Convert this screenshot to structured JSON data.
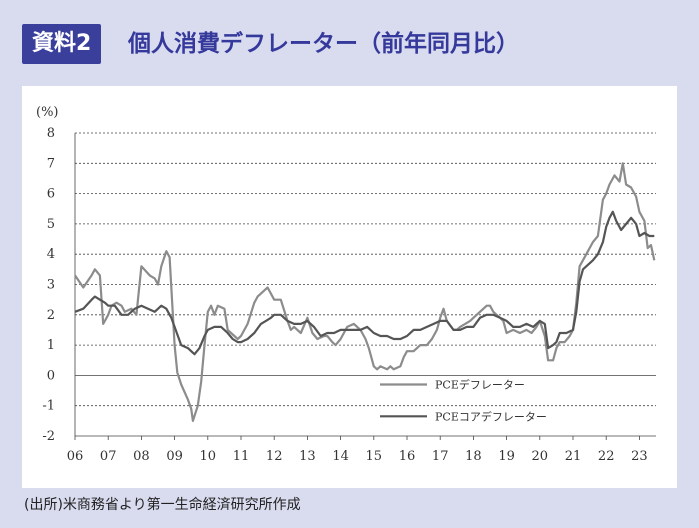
{
  "header": {
    "badge": "資料2",
    "title": "個人消費デフレーター（前年同月比）"
  },
  "footer": {
    "source": "(出所)米商務省より第一生命経済研究所作成"
  },
  "chart_data": {
    "type": "line",
    "ylabel": "(%)",
    "ylim": [
      -2,
      8
    ],
    "yticks": [
      "8",
      "7",
      "6",
      "5",
      "4",
      "3",
      "2",
      "1",
      "0",
      "-1",
      "-2"
    ],
    "xticks": [
      "06",
      "07",
      "08",
      "09",
      "10",
      "11",
      "12",
      "13",
      "14",
      "15",
      "16",
      "17",
      "18",
      "19",
      "20",
      "21",
      "22",
      "23"
    ],
    "xlim": [
      2006.0,
      2023.5
    ],
    "grid": "horizontal dashed",
    "legend_position": "bottom-center",
    "series": [
      {
        "name": "PCEデフレーター",
        "color": "#8c8c8c",
        "points": [
          [
            2006.0,
            3.3
          ],
          [
            2006.25,
            2.9
          ],
          [
            2006.5,
            3.3
          ],
          [
            2006.6,
            3.5
          ],
          [
            2006.75,
            3.3
          ],
          [
            2006.85,
            1.7
          ],
          [
            2007.0,
            2.0
          ],
          [
            2007.1,
            2.3
          ],
          [
            2007.25,
            2.4
          ],
          [
            2007.4,
            2.3
          ],
          [
            2007.5,
            2.1
          ],
          [
            2007.7,
            2.2
          ],
          [
            2007.85,
            2.0
          ],
          [
            2008.0,
            3.6
          ],
          [
            2008.25,
            3.3
          ],
          [
            2008.4,
            3.2
          ],
          [
            2008.5,
            3.0
          ],
          [
            2008.6,
            3.6
          ],
          [
            2008.75,
            4.1
          ],
          [
            2008.85,
            3.9
          ],
          [
            2009.0,
            1.0
          ],
          [
            2009.08,
            0.1
          ],
          [
            2009.2,
            -0.3
          ],
          [
            2009.4,
            -0.8
          ],
          [
            2009.5,
            -1.1
          ],
          [
            2009.55,
            -1.5
          ],
          [
            2009.7,
            -1.0
          ],
          [
            2009.8,
            -0.2
          ],
          [
            2009.9,
            1.0
          ],
          [
            2010.0,
            2.1
          ],
          [
            2010.1,
            2.3
          ],
          [
            2010.2,
            2.0
          ],
          [
            2010.3,
            2.3
          ],
          [
            2010.5,
            2.2
          ],
          [
            2010.6,
            1.5
          ],
          [
            2010.8,
            1.3
          ],
          [
            2010.9,
            1.2
          ],
          [
            2011.0,
            1.3
          ],
          [
            2011.2,
            1.7
          ],
          [
            2011.4,
            2.4
          ],
          [
            2011.5,
            2.6
          ],
          [
            2011.7,
            2.8
          ],
          [
            2011.8,
            2.9
          ],
          [
            2012.0,
            2.5
          ],
          [
            2012.2,
            2.5
          ],
          [
            2012.4,
            1.8
          ],
          [
            2012.5,
            1.5
          ],
          [
            2012.6,
            1.6
          ],
          [
            2012.8,
            1.4
          ],
          [
            2013.0,
            1.9
          ],
          [
            2013.15,
            1.4
          ],
          [
            2013.3,
            1.2
          ],
          [
            2013.5,
            1.3
          ],
          [
            2013.6,
            1.3
          ],
          [
            2013.75,
            1.1
          ],
          [
            2013.85,
            1.0
          ],
          [
            2014.0,
            1.2
          ],
          [
            2014.2,
            1.6
          ],
          [
            2014.4,
            1.7
          ],
          [
            2014.5,
            1.6
          ],
          [
            2014.6,
            1.5
          ],
          [
            2014.75,
            1.2
          ],
          [
            2014.85,
            0.9
          ],
          [
            2015.0,
            0.3
          ],
          [
            2015.1,
            0.2
          ],
          [
            2015.2,
            0.3
          ],
          [
            2015.4,
            0.2
          ],
          [
            2015.5,
            0.3
          ],
          [
            2015.6,
            0.2
          ],
          [
            2015.8,
            0.3
          ],
          [
            2015.9,
            0.6
          ],
          [
            2016.0,
            0.8
          ],
          [
            2016.2,
            0.8
          ],
          [
            2016.4,
            1.0
          ],
          [
            2016.6,
            1.0
          ],
          [
            2016.75,
            1.2
          ],
          [
            2016.9,
            1.5
          ],
          [
            2017.0,
            1.9
          ],
          [
            2017.1,
            2.2
          ],
          [
            2017.2,
            1.8
          ],
          [
            2017.4,
            1.5
          ],
          [
            2017.5,
            1.5
          ],
          [
            2017.6,
            1.6
          ],
          [
            2017.75,
            1.7
          ],
          [
            2017.9,
            1.8
          ],
          [
            2018.0,
            1.9
          ],
          [
            2018.2,
            2.1
          ],
          [
            2018.4,
            2.3
          ],
          [
            2018.5,
            2.3
          ],
          [
            2018.6,
            2.1
          ],
          [
            2018.8,
            1.9
          ],
          [
            2018.9,
            1.8
          ],
          [
            2019.0,
            1.4
          ],
          [
            2019.2,
            1.5
          ],
          [
            2019.4,
            1.4
          ],
          [
            2019.6,
            1.5
          ],
          [
            2019.75,
            1.4
          ],
          [
            2019.9,
            1.6
          ],
          [
            2020.0,
            1.8
          ],
          [
            2020.15,
            1.3
          ],
          [
            2020.25,
            0.5
          ],
          [
            2020.4,
            0.5
          ],
          [
            2020.5,
            0.9
          ],
          [
            2020.6,
            1.1
          ],
          [
            2020.75,
            1.1
          ],
          [
            2020.9,
            1.3
          ],
          [
            2021.0,
            1.5
          ],
          [
            2021.1,
            2.4
          ],
          [
            2021.2,
            3.6
          ],
          [
            2021.4,
            4.0
          ],
          [
            2021.5,
            4.2
          ],
          [
            2021.6,
            4.4
          ],
          [
            2021.75,
            4.6
          ],
          [
            2021.9,
            5.8
          ],
          [
            2022.0,
            6.0
          ],
          [
            2022.1,
            6.3
          ],
          [
            2022.25,
            6.6
          ],
          [
            2022.4,
            6.4
          ],
          [
            2022.5,
            7.0
          ],
          [
            2022.6,
            6.3
          ],
          [
            2022.75,
            6.2
          ],
          [
            2022.9,
            5.9
          ],
          [
            2023.0,
            5.4
          ],
          [
            2023.15,
            5.1
          ],
          [
            2023.25,
            4.2
          ],
          [
            2023.35,
            4.3
          ],
          [
            2023.45,
            3.8
          ]
        ]
      },
      {
        "name": "PCEコアデフレーター",
        "color": "#555555",
        "points": [
          [
            2006.0,
            2.1
          ],
          [
            2006.25,
            2.2
          ],
          [
            2006.5,
            2.5
          ],
          [
            2006.6,
            2.6
          ],
          [
            2006.75,
            2.5
          ],
          [
            2006.9,
            2.4
          ],
          [
            2007.0,
            2.3
          ],
          [
            2007.2,
            2.3
          ],
          [
            2007.4,
            2.0
          ],
          [
            2007.6,
            2.0
          ],
          [
            2007.8,
            2.2
          ],
          [
            2008.0,
            2.3
          ],
          [
            2008.2,
            2.2
          ],
          [
            2008.4,
            2.1
          ],
          [
            2008.6,
            2.3
          ],
          [
            2008.75,
            2.2
          ],
          [
            2008.9,
            1.9
          ],
          [
            2009.0,
            1.6
          ],
          [
            2009.2,
            1.0
          ],
          [
            2009.4,
            0.9
          ],
          [
            2009.5,
            0.8
          ],
          [
            2009.6,
            0.7
          ],
          [
            2009.75,
            0.9
          ],
          [
            2009.9,
            1.3
          ],
          [
            2010.0,
            1.5
          ],
          [
            2010.2,
            1.6
          ],
          [
            2010.4,
            1.6
          ],
          [
            2010.5,
            1.5
          ],
          [
            2010.6,
            1.4
          ],
          [
            2010.75,
            1.2
          ],
          [
            2010.9,
            1.1
          ],
          [
            2011.0,
            1.1
          ],
          [
            2011.2,
            1.2
          ],
          [
            2011.4,
            1.4
          ],
          [
            2011.6,
            1.7
          ],
          [
            2011.75,
            1.8
          ],
          [
            2011.9,
            1.9
          ],
          [
            2012.0,
            2.0
          ],
          [
            2012.2,
            2.0
          ],
          [
            2012.4,
            1.8
          ],
          [
            2012.6,
            1.7
          ],
          [
            2012.8,
            1.7
          ],
          [
            2013.0,
            1.8
          ],
          [
            2013.2,
            1.6
          ],
          [
            2013.4,
            1.3
          ],
          [
            2013.6,
            1.4
          ],
          [
            2013.8,
            1.4
          ],
          [
            2014.0,
            1.5
          ],
          [
            2014.2,
            1.5
          ],
          [
            2014.4,
            1.5
          ],
          [
            2014.6,
            1.5
          ],
          [
            2014.8,
            1.6
          ],
          [
            2015.0,
            1.4
          ],
          [
            2015.2,
            1.3
          ],
          [
            2015.4,
            1.3
          ],
          [
            2015.6,
            1.2
          ],
          [
            2015.8,
            1.2
          ],
          [
            2016.0,
            1.3
          ],
          [
            2016.2,
            1.5
          ],
          [
            2016.4,
            1.5
          ],
          [
            2016.6,
            1.6
          ],
          [
            2016.8,
            1.7
          ],
          [
            2017.0,
            1.8
          ],
          [
            2017.2,
            1.8
          ],
          [
            2017.4,
            1.5
          ],
          [
            2017.6,
            1.5
          ],
          [
            2017.8,
            1.6
          ],
          [
            2018.0,
            1.6
          ],
          [
            2018.2,
            1.9
          ],
          [
            2018.4,
            2.0
          ],
          [
            2018.6,
            2.0
          ],
          [
            2018.8,
            1.9
          ],
          [
            2019.0,
            1.8
          ],
          [
            2019.2,
            1.6
          ],
          [
            2019.4,
            1.6
          ],
          [
            2019.6,
            1.7
          ],
          [
            2019.8,
            1.6
          ],
          [
            2020.0,
            1.8
          ],
          [
            2020.15,
            1.7
          ],
          [
            2020.25,
            0.9
          ],
          [
            2020.4,
            1.0
          ],
          [
            2020.5,
            1.1
          ],
          [
            2020.6,
            1.4
          ],
          [
            2020.8,
            1.4
          ],
          [
            2021.0,
            1.5
          ],
          [
            2021.1,
            2.1
          ],
          [
            2021.2,
            3.1
          ],
          [
            2021.3,
            3.5
          ],
          [
            2021.4,
            3.6
          ],
          [
            2021.5,
            3.7
          ],
          [
            2021.6,
            3.8
          ],
          [
            2021.75,
            4.0
          ],
          [
            2021.9,
            4.4
          ],
          [
            2022.0,
            4.9
          ],
          [
            2022.1,
            5.2
          ],
          [
            2022.2,
            5.4
          ],
          [
            2022.3,
            5.1
          ],
          [
            2022.45,
            4.8
          ],
          [
            2022.6,
            5.0
          ],
          [
            2022.75,
            5.2
          ],
          [
            2022.9,
            5.0
          ],
          [
            2023.0,
            4.6
          ],
          [
            2023.15,
            4.7
          ],
          [
            2023.3,
            4.6
          ],
          [
            2023.45,
            4.6
          ]
        ]
      }
    ]
  }
}
